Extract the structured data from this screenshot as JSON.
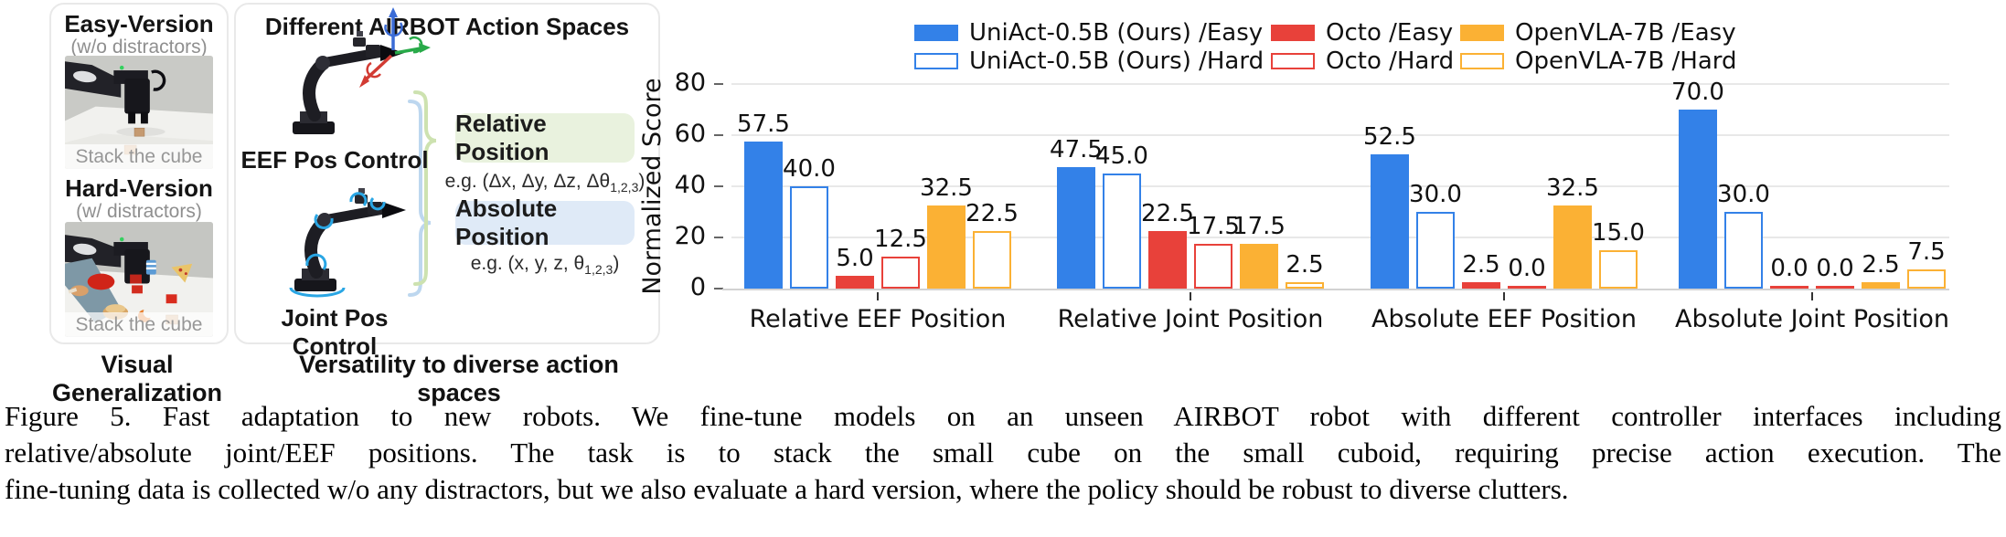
{
  "colors": {
    "uniact_blue": "#3381e8",
    "octo_red": "#e8413a",
    "openvla_orange": "#fbb134",
    "relative_box_bg": "#e9f2de",
    "absolute_box_bg": "#dfeaf7",
    "brace_green": "#cde2b0",
    "brace_blue": "#bdd7ef",
    "grid_gray": "#e8e8e8"
  },
  "left_panel": {
    "easy_title": "Easy-Version",
    "easy_subtitle": "(w/o distractors)",
    "easy_photo_caption": "Stack the cube",
    "hard_title": "Hard-Version",
    "hard_subtitle": "(w/ distractors)",
    "hard_photo_caption": "Stack the cube",
    "footer": "Visual Generalization"
  },
  "middle_panel": {
    "title": "Different AIRBOT Action Spaces",
    "eef_control_label": "EEF Pos Control",
    "joint_control_label": "Joint Pos Control",
    "relative_box_label": "Relative Position",
    "relative_example": {
      "pre": "e.g. (Δx, Δy, Δz, Δθ",
      "sub": "1,2,3",
      "post": ")"
    },
    "absolute_box_label": "Absolute Position",
    "absolute_example": {
      "pre": "e.g. (x, y, z, θ",
      "sub": "1,2,3",
      "post": ")"
    },
    "footer": "Versatility to diverse action spaces"
  },
  "chart_data": {
    "type": "bar",
    "title": "",
    "xlabel": "",
    "ylabel": "Normalized Score",
    "ylim": [
      0,
      80
    ],
    "yticks": [
      0,
      20,
      40,
      60,
      80
    ],
    "grid": true,
    "legend_position": "top",
    "bar_value_labels": true,
    "categories": [
      "Relative EEF Position",
      "Relative Joint Position",
      "Absolute EEF Position",
      "Absolute Joint Position"
    ],
    "series": [
      {
        "name": "UniAct-0.5B (Ours) /Easy",
        "style": "filled",
        "color": "#3381e8",
        "values": [
          57.5,
          47.5,
          52.5,
          70.0
        ]
      },
      {
        "name": "UniAct-0.5B (Ours) /Hard",
        "style": "outline",
        "color": "#3381e8",
        "values": [
          40.0,
          45.0,
          30.0,
          30.0
        ]
      },
      {
        "name": "Octo /Easy",
        "style": "filled",
        "color": "#e8413a",
        "values": [
          5.0,
          22.5,
          2.5,
          0.0
        ]
      },
      {
        "name": "Octo /Hard",
        "style": "outline",
        "color": "#e8413a",
        "values": [
          12.5,
          17.5,
          0.0,
          0.0
        ]
      },
      {
        "name": "OpenVLA-7B /Easy",
        "style": "filled",
        "color": "#fbb134",
        "values": [
          32.5,
          17.5,
          32.5,
          2.5
        ]
      },
      {
        "name": "OpenVLA-7B /Hard",
        "style": "outline",
        "color": "#fbb134",
        "values": [
          22.5,
          2.5,
          15.0,
          7.5
        ]
      }
    ]
  },
  "caption": {
    "lines": [
      "Figure 5.  Fast adaptation to new robots.  We fine-tune models on an unseen AIRBOT robot with different controller interfaces including",
      "relative/absolute joint/EEF positions.  The task is to stack the small cube on the small cuboid, requiring precise action execution.  The",
      "fine-tuning data is collected w/o any distractors, but we also evaluate a hard version, where the policy should be robust to diverse clutters."
    ]
  }
}
